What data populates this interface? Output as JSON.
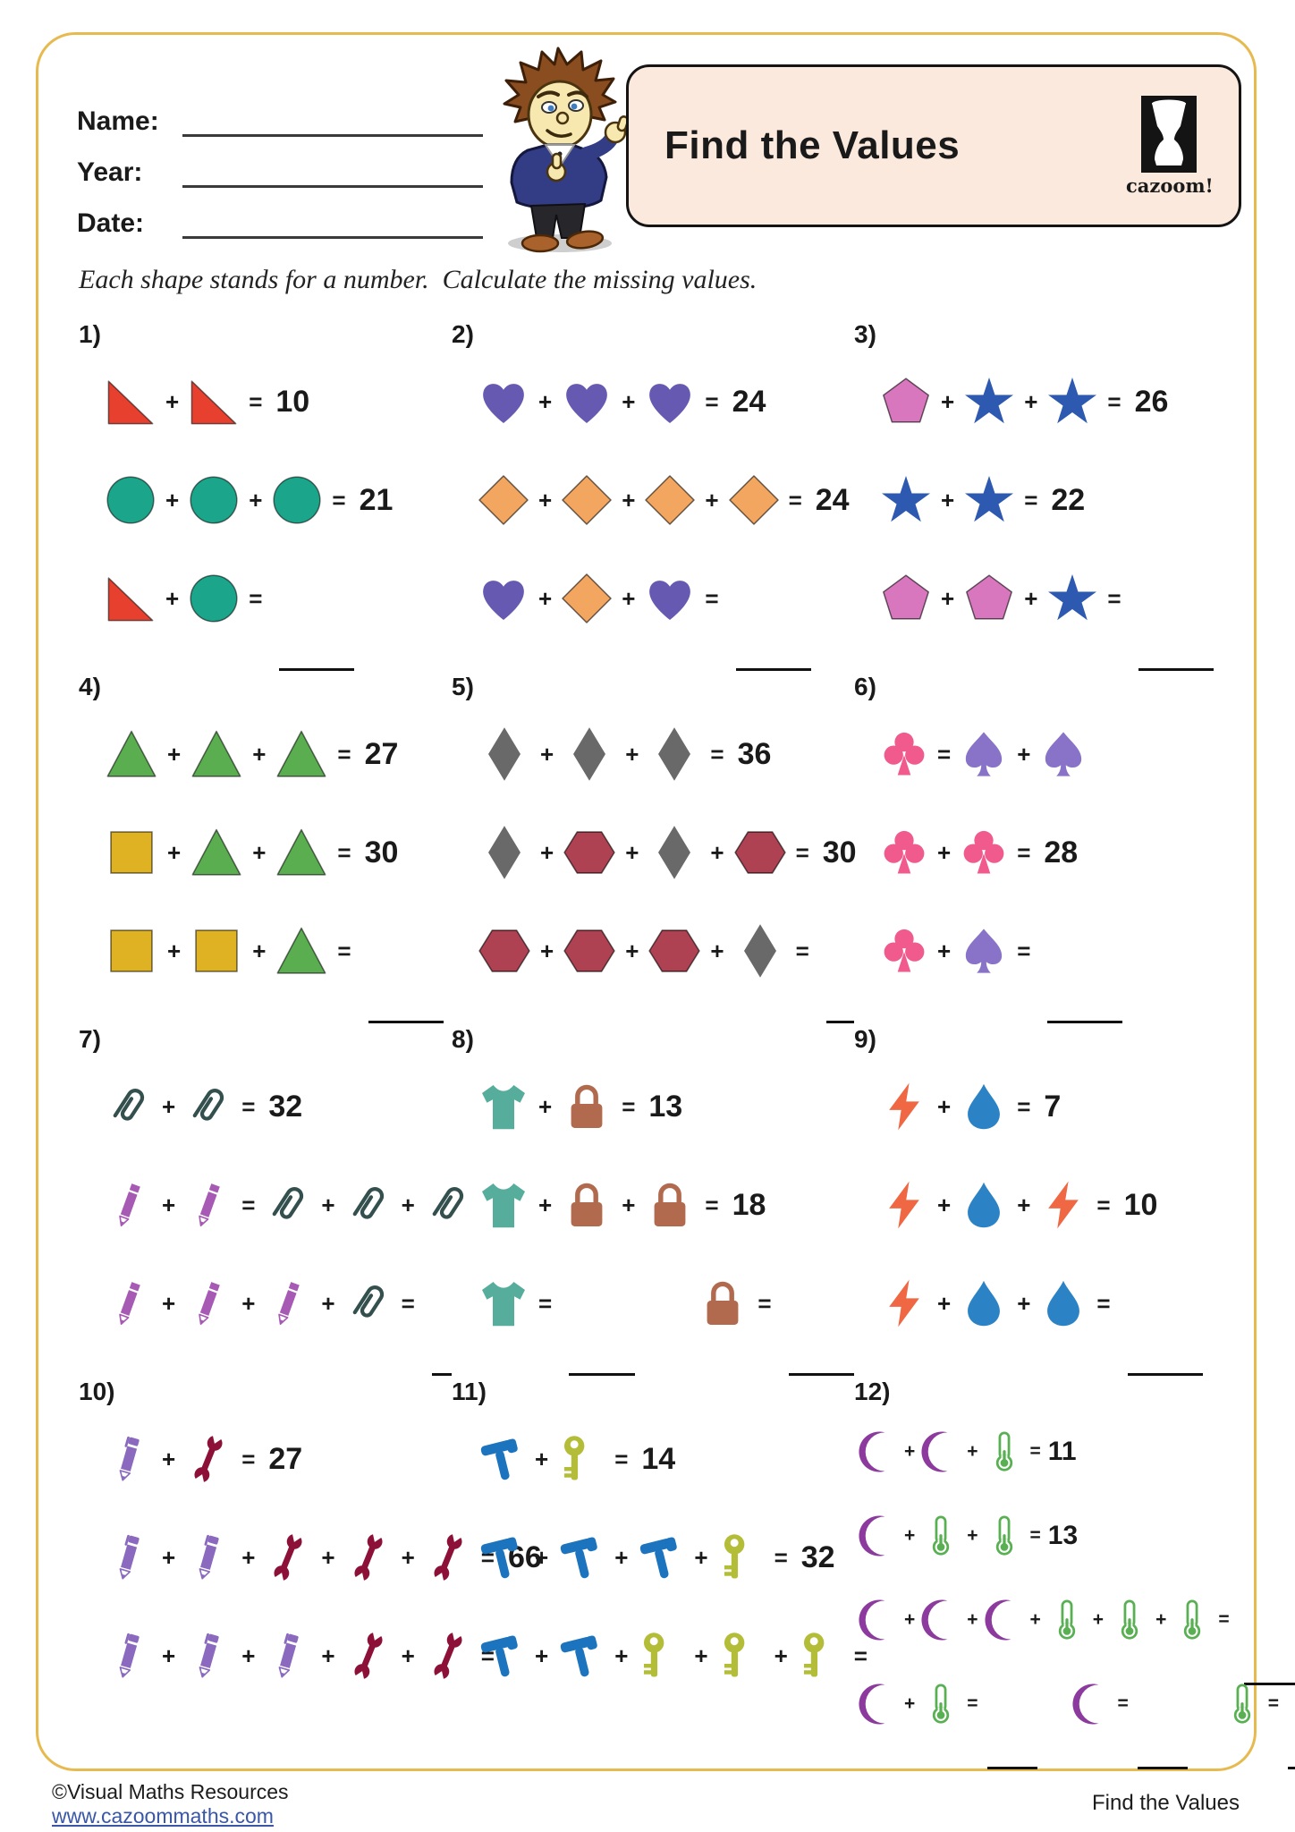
{
  "header": {
    "name_label": "Name:",
    "year_label": "Year:",
    "date_label": "Date:",
    "title": "Find the Values",
    "logo_text": "cazoom!"
  },
  "instruction": "Each shape stands for a number.  Calculate the missing values.",
  "footer": {
    "copyright": "©Visual Maths Resources",
    "link": "www.cazoommaths.com",
    "page_title": "Find the Values"
  },
  "accent_colors": {
    "sheet_border": "#E7BA50",
    "title_box_bg": "#FAE9DC",
    "link_blue": "#3A57A7"
  },
  "shape_colors": {
    "red-triangle": "#E8402F",
    "teal-circle": "#1BA58B",
    "purple-heart": "#6659B2",
    "orange-diamond": "#F3A65F",
    "pink-pentagon": "#D877BD",
    "blue-star": "#2E59B0",
    "green-triangle": "#5AAE50",
    "yellow-square": "#DFB224",
    "gray-rhombus": "#696969",
    "red-hexagon": "#AE4152",
    "pink-club": "#F05A8C",
    "purple-spade": "#8973C8",
    "paperclip": "#33504E",
    "purple-pencil": "#A65AB4",
    "teal-tshirt": "#57AD9C",
    "brown-lock": "#B26A4E",
    "orange-bolt": "#EF6743",
    "blue-drop": "#2B82C5",
    "purple-pen": "#8A69BE",
    "maroon-wrench": "#8C1038",
    "blue-hammer": "#1B74BD",
    "olive-key": "#B4BD37",
    "purple-moon": "#8C3A9E",
    "green-thermometer": "#58B052"
  },
  "problems": [
    {
      "number": "1)",
      "shape_size": 60,
      "rows": [
        [
          "shape:red-triangle",
          "+",
          "shape:red-triangle",
          "=",
          "10"
        ],
        [
          "shape:teal-circle",
          "+",
          "shape:teal-circle",
          "+",
          "shape:teal-circle",
          "=",
          "21"
        ],
        [
          "shape:red-triangle",
          "+",
          "shape:teal-circle",
          "=",
          "blank"
        ]
      ]
    },
    {
      "number": "2)",
      "shape_size": 60,
      "rows": [
        [
          "shape:purple-heart",
          "+",
          "shape:purple-heart",
          "+",
          "shape:purple-heart",
          "=",
          "24"
        ],
        [
          "shape:orange-diamond",
          "+",
          "shape:orange-diamond",
          "+",
          "shape:orange-diamond",
          "+",
          "shape:orange-diamond",
          "=",
          "24"
        ],
        [
          "shape:purple-heart",
          "+",
          "shape:orange-diamond",
          "+",
          "shape:purple-heart",
          "=",
          "blank"
        ]
      ]
    },
    {
      "number": "3)",
      "shape_size": 60,
      "rows": [
        [
          "shape:pink-pentagon",
          "+",
          "shape:blue-star",
          "+",
          "shape:blue-star",
          "=",
          "26"
        ],
        [
          "shape:blue-star",
          "+",
          "shape:blue-star",
          "=",
          "22"
        ],
        [
          "shape:pink-pentagon",
          "+",
          "shape:pink-pentagon",
          "+",
          "shape:blue-star",
          "=",
          "blank"
        ]
      ]
    },
    {
      "number": "4)",
      "shape_size": 62,
      "rows": [
        [
          "shape:green-triangle",
          "+",
          "shape:green-triangle",
          "+",
          "shape:green-triangle",
          "=",
          "27"
        ],
        [
          "shape:yellow-square",
          "+",
          "shape:green-triangle",
          "+",
          "shape:green-triangle",
          "=",
          "30"
        ],
        [
          "shape:yellow-square",
          "+",
          "shape:yellow-square",
          "+",
          "shape:green-triangle",
          "=",
          "blank"
        ]
      ]
    },
    {
      "number": "5)",
      "shape_size": 62,
      "rows": [
        [
          "shape:gray-rhombus",
          "+",
          "shape:gray-rhombus",
          "+",
          "shape:gray-rhombus",
          "=",
          "36"
        ],
        [
          "shape:gray-rhombus",
          "+",
          "shape:red-hexagon",
          "+",
          "shape:gray-rhombus",
          "+",
          "shape:red-hexagon",
          "=",
          "30"
        ],
        [
          "shape:red-hexagon",
          "+",
          "shape:red-hexagon",
          "+",
          "shape:red-hexagon",
          "+",
          "shape:gray-rhombus",
          "=",
          "blank"
        ]
      ]
    },
    {
      "number": "6)",
      "shape_size": 56,
      "rows": [
        [
          "shape:pink-club",
          "=",
          "shape:purple-spade",
          "+",
          "shape:purple-spade"
        ],
        [
          "shape:pink-club",
          "+",
          "shape:pink-club",
          "=",
          "28"
        ],
        [
          "shape:pink-club",
          "+",
          "shape:purple-spade",
          "=",
          "blank"
        ]
      ]
    },
    {
      "number": "7)",
      "shape_size": 56,
      "rows": [
        [
          "shape:paperclip",
          "+",
          "shape:paperclip",
          "=",
          "32"
        ],
        [
          "shape:purple-pencil",
          "+",
          "shape:purple-pencil",
          "=",
          "shape:paperclip",
          "+",
          "shape:paperclip",
          "+",
          "shape:paperclip"
        ],
        [
          "shape:purple-pencil",
          "+",
          "shape:purple-pencil",
          "+",
          "shape:purple-pencil",
          "+",
          "shape:paperclip",
          "=",
          "blank"
        ]
      ]
    },
    {
      "number": "8)",
      "shape_size": 60,
      "rows": [
        [
          "shape:teal-tshirt",
          "+",
          "shape:brown-lock",
          "=",
          "13"
        ],
        [
          "shape:teal-tshirt",
          "+",
          "shape:brown-lock",
          "+",
          "shape:brown-lock",
          "=",
          "18"
        ],
        [
          "shape:teal-tshirt",
          "=",
          "blank",
          "gap",
          "shape:brown-lock",
          "=",
          "blank"
        ]
      ]
    },
    {
      "number": "9)",
      "shape_size": 56,
      "rows": [
        [
          "shape:orange-bolt",
          "+",
          "shape:blue-drop",
          "=",
          "7"
        ],
        [
          "shape:orange-bolt",
          "+",
          "shape:blue-drop",
          "+",
          "shape:orange-bolt",
          "=",
          "10"
        ],
        [
          "shape:orange-bolt",
          "+",
          "shape:blue-drop",
          "+",
          "shape:blue-drop",
          "=",
          "blank"
        ]
      ]
    },
    {
      "number": "10)",
      "shape_size": 56,
      "rows": [
        [
          "shape:purple-pen",
          "+",
          "shape:maroon-wrench",
          "=",
          "27"
        ],
        [
          "shape:purple-pen",
          "+",
          "shape:purple-pen",
          "+",
          "shape:maroon-wrench",
          "+",
          "shape:maroon-wrench",
          "+",
          "shape:maroon-wrench",
          "=",
          "66"
        ],
        [
          "shape:purple-pen",
          "+",
          "shape:purple-pen",
          "+",
          "shape:purple-pen",
          "+",
          "shape:maroon-wrench",
          "+",
          "shape:maroon-wrench",
          "=",
          "blank"
        ]
      ]
    },
    {
      "number": "11)",
      "shape_size": 56,
      "rows": [
        [
          "shape:blue-hammer",
          "+",
          "shape:olive-key",
          "=",
          "14"
        ],
        [
          "shape:blue-hammer",
          "+",
          "shape:blue-hammer",
          "+",
          "shape:blue-hammer",
          "+",
          "shape:olive-key",
          "=",
          "32"
        ],
        [
          "shape:blue-hammer",
          "+",
          "shape:blue-hammer",
          "+",
          "shape:olive-key",
          "+",
          "shape:olive-key",
          "+",
          "shape:olive-key",
          "=",
          "blank"
        ]
      ]
    },
    {
      "number": "12)",
      "shape_size": 46,
      "compact": true,
      "rows": [
        [
          "shape:purple-moon",
          "+",
          "shape:purple-moon",
          "+",
          "shape:green-thermometer",
          "=",
          "11"
        ],
        [
          "shape:purple-moon",
          "+",
          "shape:green-thermometer",
          "+",
          "shape:green-thermometer",
          "=",
          "13"
        ],
        [
          "shape:purple-moon",
          "+",
          "shape:purple-moon",
          "+",
          "shape:purple-moon",
          "+",
          "shape:green-thermometer",
          "+",
          "shape:green-thermometer",
          "+",
          "shape:green-thermometer",
          "=",
          "blank"
        ],
        [
          "shape:purple-moon",
          "+",
          "shape:green-thermometer",
          "=",
          "blank-sm",
          "gap",
          "shape:purple-moon",
          "=",
          "blank-sm",
          "gap",
          "shape:green-thermometer",
          "=",
          "blank-sm"
        ]
      ]
    }
  ]
}
